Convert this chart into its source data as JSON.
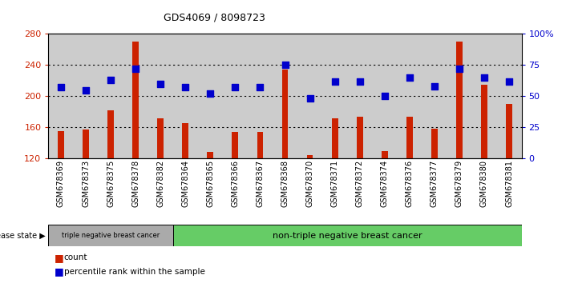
{
  "title": "GDS4069 / 8098723",
  "samples": [
    "GSM678369",
    "GSM678373",
    "GSM678375",
    "GSM678378",
    "GSM678382",
    "GSM678364",
    "GSM678365",
    "GSM678366",
    "GSM678367",
    "GSM678368",
    "GSM678370",
    "GSM678371",
    "GSM678372",
    "GSM678374",
    "GSM678376",
    "GSM678377",
    "GSM678379",
    "GSM678380",
    "GSM678381"
  ],
  "bar_values": [
    155,
    157,
    182,
    270,
    172,
    165,
    128,
    154,
    154,
    234,
    124,
    172,
    174,
    130,
    174,
    158,
    270,
    215,
    190
  ],
  "dot_values": [
    57,
    55,
    63,
    72,
    60,
    57,
    52,
    57,
    57,
    75,
    48,
    62,
    62,
    50,
    65,
    58,
    72,
    65,
    62
  ],
  "ylim_left": [
    120,
    280
  ],
  "ylim_right": [
    0,
    100
  ],
  "yticks_left": [
    120,
    160,
    200,
    240,
    280
  ],
  "yticks_right": [
    0,
    25,
    50,
    75,
    100
  ],
  "ytick_labels_right": [
    "0",
    "25",
    "50",
    "75",
    "100%"
  ],
  "bar_color": "#CC2200",
  "dot_color": "#0000CC",
  "bg_color": "#FFFFFF",
  "col_bg_color": "#CCCCCC",
  "triple_neg_count": 5,
  "label_count": "count",
  "label_percentile": "percentile rank within the sample",
  "group1_label": "triple negative breast cancer",
  "group2_label": "non-triple negative breast cancer",
  "disease_state_label": "disease state",
  "group1_color": "#AAAAAA",
  "group2_color": "#66CC66",
  "tick_label_color_left": "#CC2200",
  "tick_label_color_right": "#0000CC",
  "title_fontsize": 9,
  "tick_fontsize": 7,
  "ytick_fontsize": 8
}
